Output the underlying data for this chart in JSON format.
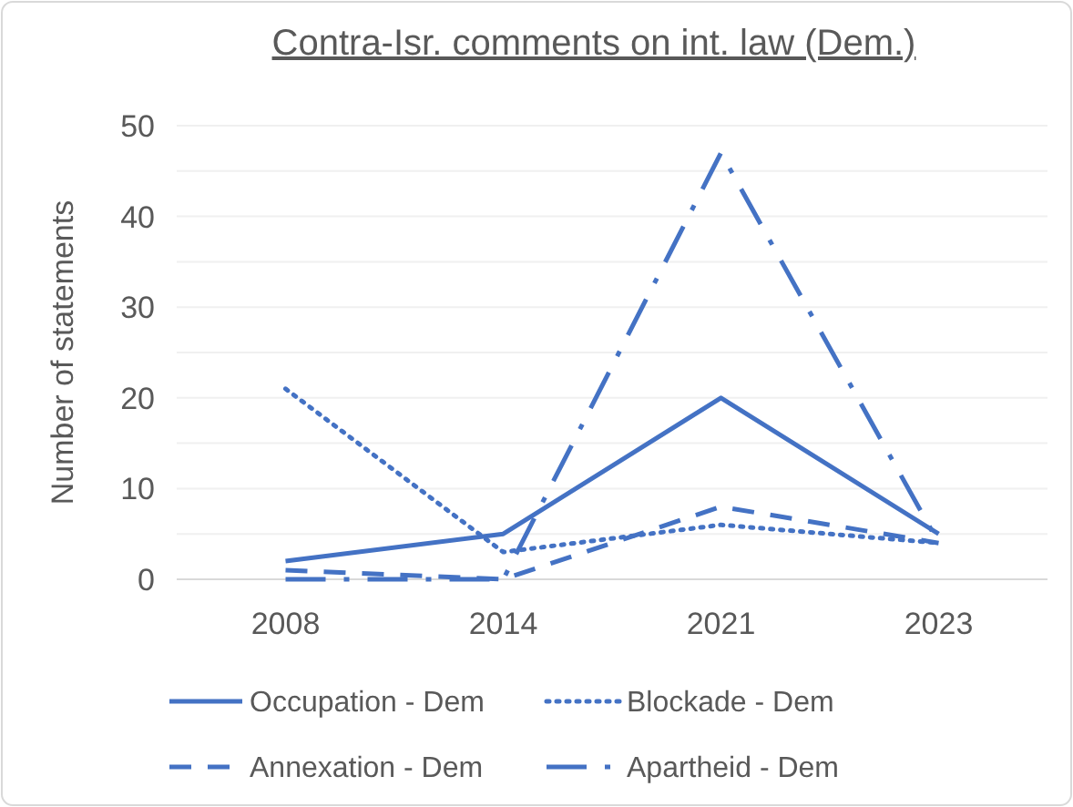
{
  "chart_data": {
    "type": "line",
    "title": "Contra-Isr. comments on int. law (Dem.)",
    "ylabel": "Number of statements",
    "categories": [
      "2008",
      "2014",
      "2021",
      "2023"
    ],
    "series": [
      {
        "name": "Occupation - Dem",
        "color": "#4472c4",
        "line_style": "solid",
        "values": [
          2,
          5,
          20,
          5
        ]
      },
      {
        "name": "Blockade - Dem",
        "color": "#4472c4",
        "line_style": "dotted",
        "values": [
          21,
          3,
          6,
          4
        ]
      },
      {
        "name": "Annexation - Dem",
        "color": "#4472c4",
        "line_style": "dashed",
        "values": [
          1,
          0,
          8,
          4
        ]
      },
      {
        "name": "Apartheid - Dem",
        "color": "#4472c4",
        "line_style": "dashdot",
        "values": [
          0,
          0,
          47,
          4
        ]
      }
    ],
    "ylim": [
      0,
      50
    ],
    "yticks": [
      0,
      {
        "value": 5,
        "label": null
      },
      10,
      {
        "value": 15,
        "label": null
      },
      20,
      {
        "value": 25,
        "label": null
      },
      30,
      {
        "value": 35,
        "label": null
      },
      40,
      {
        "value": 45,
        "label": null
      },
      50
    ],
    "grid": "y",
    "legend": "bottom",
    "marker": "none"
  }
}
